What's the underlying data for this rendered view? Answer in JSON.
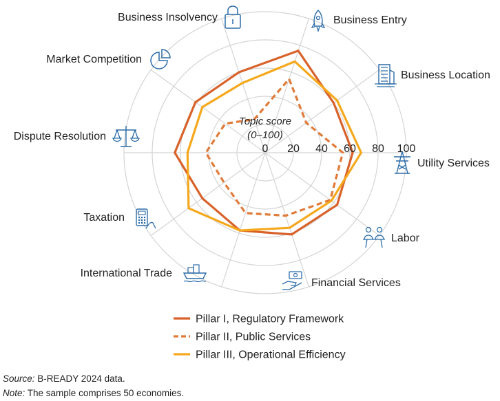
{
  "chart_data": {
    "type": "radar",
    "categories": [
      "Business Entry",
      "Business Location",
      "Utility Services",
      "Labor",
      "Financial Services",
      "International Trade",
      "Taxation",
      "Dispute Resolution",
      "Market Competition",
      "Business Insolvency"
    ],
    "category_icons": [
      "rocket-icon",
      "office-building-icon",
      "power-tower-icon",
      "meeting-people-icon",
      "hand-money-icon",
      "cargo-ship-icon",
      "calculator-hand-icon",
      "scales-icon",
      "pie-chart-icon",
      "padlock-icon"
    ],
    "axis_title_line1": "Topic score",
    "axis_title_line2": "(0–100)",
    "ticks": [
      "0",
      "20",
      "40",
      "60",
      "80",
      "100"
    ],
    "rlim": [
      0,
      100
    ],
    "grid": true,
    "series": [
      {
        "name": "Pillar I, Regulatory Framework",
        "style": "solid",
        "color": "#D9622B",
        "values": [
          76,
          60,
          62,
          63,
          61,
          58,
          55,
          64,
          61,
          60
        ]
      },
      {
        "name": "Pillar II, Public Services",
        "style": "dashed",
        "color": "#E07B39",
        "values": [
          55,
          36,
          55,
          57,
          47,
          45,
          36,
          42,
          35,
          25
        ]
      },
      {
        "name": "Pillar III, Operational Efficiency",
        "style": "solid",
        "color": "#F5A81C",
        "values": [
          68,
          63,
          68,
          58,
          56,
          58,
          67,
          55,
          55,
          52
        ]
      }
    ],
    "legend_position": "bottom"
  },
  "notes": {
    "source_lead": "Source:",
    "source_text": " B-READY 2024 data.",
    "note_lead": "Note:",
    "note_text": " The sample comprises 50 economies."
  }
}
